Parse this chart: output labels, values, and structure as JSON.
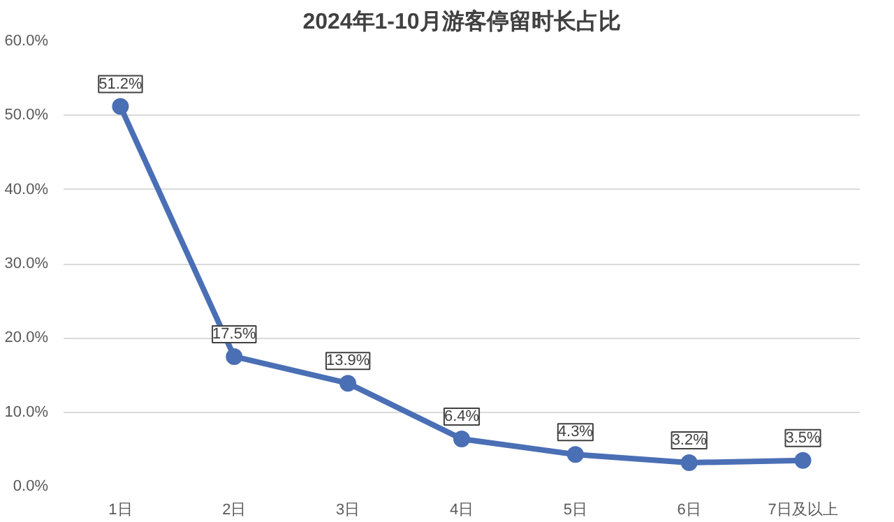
{
  "chart_data": {
    "type": "line",
    "title": "2024年1-10月游客停留时长占比",
    "categories": [
      "1日",
      "2日",
      "3日",
      "4日",
      "5日",
      "6日",
      "7日及以上"
    ],
    "series": [
      {
        "color": "#4a6fb5",
        "values": [
          51.2,
          17.5,
          13.9,
          6.4,
          4.3,
          3.2,
          3.5
        ],
        "value_labels": [
          "51.2%",
          "17.5%",
          "13.9%",
          "6.4%",
          "4.3%",
          "3.2%",
          "3.5%"
        ]
      }
    ],
    "ylim": [
      0,
      60
    ],
    "yticks": [
      {
        "value": 0,
        "label": "0.0%"
      },
      {
        "value": 10,
        "label": "10.0%"
      },
      {
        "value": 20,
        "label": "20.0%"
      },
      {
        "value": 30,
        "label": "30.0%"
      },
      {
        "value": 40,
        "label": "40.0%"
      },
      {
        "value": 50,
        "label": "50.0%"
      },
      {
        "value": 60,
        "label": "60.0%"
      }
    ],
    "grid": "y",
    "marker": "circle",
    "line_style": "solid"
  }
}
